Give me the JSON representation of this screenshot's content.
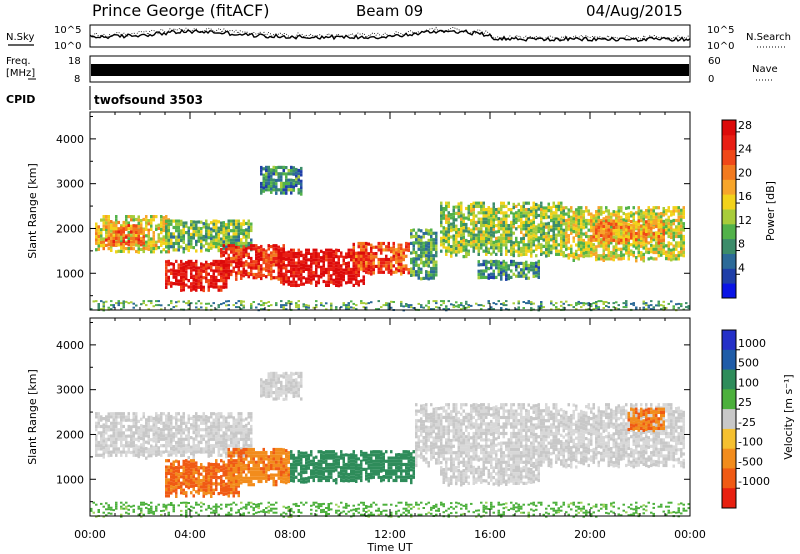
{
  "header": {
    "station": "Prince George (fitACF)",
    "beam": "Beam 09",
    "date": "04/Aug/2015"
  },
  "strips": {
    "nsky_label": "N.Sky",
    "nsky_ticks": [
      "10^5",
      "10^0"
    ],
    "nsearch_label": "N.Search",
    "freq_label_1": "Freq.",
    "freq_label_2": "[MHz]",
    "freq_ticks": [
      "18",
      "8"
    ],
    "nave_label": "Nave",
    "nave_ticks": [
      "60",
      "0"
    ],
    "cpid_label": "CPID",
    "cpid_value": "twofsound 3503"
  },
  "panels": {
    "ylabel": "Slant Range [km]",
    "xlabel": "Time UT"
  },
  "colors": {
    "power_scale": [
      "#0a14e6",
      "#1f3fa8",
      "#2c6a98",
      "#3c8c6a",
      "#52b24a",
      "#a8cc3a",
      "#f2d21a",
      "#f7a52a",
      "#f27a1e",
      "#f04818",
      "#e81e14",
      "#dc0a0a"
    ],
    "velocity_scale": [
      "#2430c8",
      "#1f5ca8",
      "#2e8c5a",
      "#4cb03c",
      "#9cd45a",
      "#c8c8c8",
      "#d8d8d8",
      "#f5c030",
      "#f28c1c",
      "#f05a14",
      "#e82010"
    ]
  },
  "chart_data": [
    {
      "type": "heatmap",
      "panel": "power",
      "x_ticks": [
        "00:00",
        "04:00",
        "08:00",
        "12:00",
        "16:00",
        "20:00",
        "00:00"
      ],
      "xlim_hours": [
        0,
        24
      ],
      "ylabel": "Slant Range [km]",
      "ylim_km": [
        180,
        4600
      ],
      "y_ticks": [
        1000,
        2000,
        3000,
        4000
      ],
      "colorbar_label": "Power [dB]",
      "colorbar_ticks": [
        4,
        8,
        12,
        16,
        20,
        24,
        28
      ],
      "colorbar_range": [
        0,
        30
      ],
      "regions": [
        {
          "t0": 0.2,
          "t1": 3.2,
          "r0": 1500,
          "r1": 2300,
          "value": 16
        },
        {
          "t0": 0.6,
          "t1": 2.2,
          "r0": 1650,
          "r1": 2100,
          "value": 22
        },
        {
          "t0": 3.0,
          "t1": 6.5,
          "r0": 1500,
          "r1": 2200,
          "value": 12
        },
        {
          "t0": 3.0,
          "t1": 5.5,
          "r0": 650,
          "r1": 1300,
          "value": 28
        },
        {
          "t0": 5.2,
          "t1": 7.8,
          "r0": 900,
          "r1": 1650,
          "value": 26
        },
        {
          "t0": 7.5,
          "t1": 11.0,
          "r0": 750,
          "r1": 1550,
          "value": 29
        },
        {
          "t0": 10.5,
          "t1": 12.8,
          "r0": 1000,
          "r1": 1700,
          "value": 24
        },
        {
          "t0": 6.8,
          "t1": 8.5,
          "r0": 2800,
          "r1": 3400,
          "value": 8
        },
        {
          "t0": 12.8,
          "t1": 13.8,
          "r0": 900,
          "r1": 2000,
          "value": 10
        },
        {
          "t0": 14.0,
          "t1": 19.0,
          "r0": 1400,
          "r1": 2600,
          "value": 13
        },
        {
          "t0": 15.5,
          "t1": 18.0,
          "r0": 900,
          "r1": 1300,
          "value": 9
        },
        {
          "t0": 19.0,
          "t1": 23.8,
          "r0": 1300,
          "r1": 2500,
          "value": 15
        },
        {
          "t0": 20.0,
          "t1": 23.0,
          "r0": 1700,
          "r1": 2200,
          "value": 20
        },
        {
          "t0": 0.0,
          "t1": 24.0,
          "r0": 180,
          "r1": 400,
          "value": 10
        }
      ]
    },
    {
      "type": "heatmap",
      "panel": "velocity",
      "x_ticks": [
        "00:00",
        "04:00",
        "08:00",
        "12:00",
        "16:00",
        "20:00",
        "00:00"
      ],
      "xlim_hours": [
        0,
        24
      ],
      "xlabel": "Time UT",
      "ylabel": "Slant Range [km]",
      "ylim_km": [
        180,
        4600
      ],
      "y_ticks": [
        1000,
        2000,
        3000,
        4000
      ],
      "colorbar_label": "Velocity [m s⁻¹]",
      "colorbar_ticks": [
        "1000",
        "500",
        "100",
        "25",
        "-25",
        "-100",
        "-500",
        "-1000"
      ],
      "regions": [
        {
          "t0": 0.2,
          "t1": 6.5,
          "r0": 1500,
          "r1": 2500,
          "value": "ground"
        },
        {
          "t0": 3.0,
          "t1": 6.0,
          "r0": 650,
          "r1": 1450,
          "value": -400
        },
        {
          "t0": 5.5,
          "t1": 8.0,
          "r0": 900,
          "r1": 1700,
          "value": -300
        },
        {
          "t0": 8.0,
          "t1": 13.0,
          "r0": 950,
          "r1": 1650,
          "value": 200
        },
        {
          "t0": 6.8,
          "t1": 8.5,
          "r0": 2800,
          "r1": 3400,
          "value": "ground"
        },
        {
          "t0": 13.0,
          "t1": 23.8,
          "r0": 1300,
          "r1": 2700,
          "value": "ground"
        },
        {
          "t0": 14.0,
          "t1": 18.0,
          "r0": 900,
          "r1": 1300,
          "value": "ground"
        },
        {
          "t0": 21.5,
          "t1": 23.0,
          "r0": 2100,
          "r1": 2600,
          "value": -300
        },
        {
          "t0": 0.0,
          "t1": 24.0,
          "r0": 180,
          "r1": 500,
          "value": 60
        }
      ]
    }
  ]
}
